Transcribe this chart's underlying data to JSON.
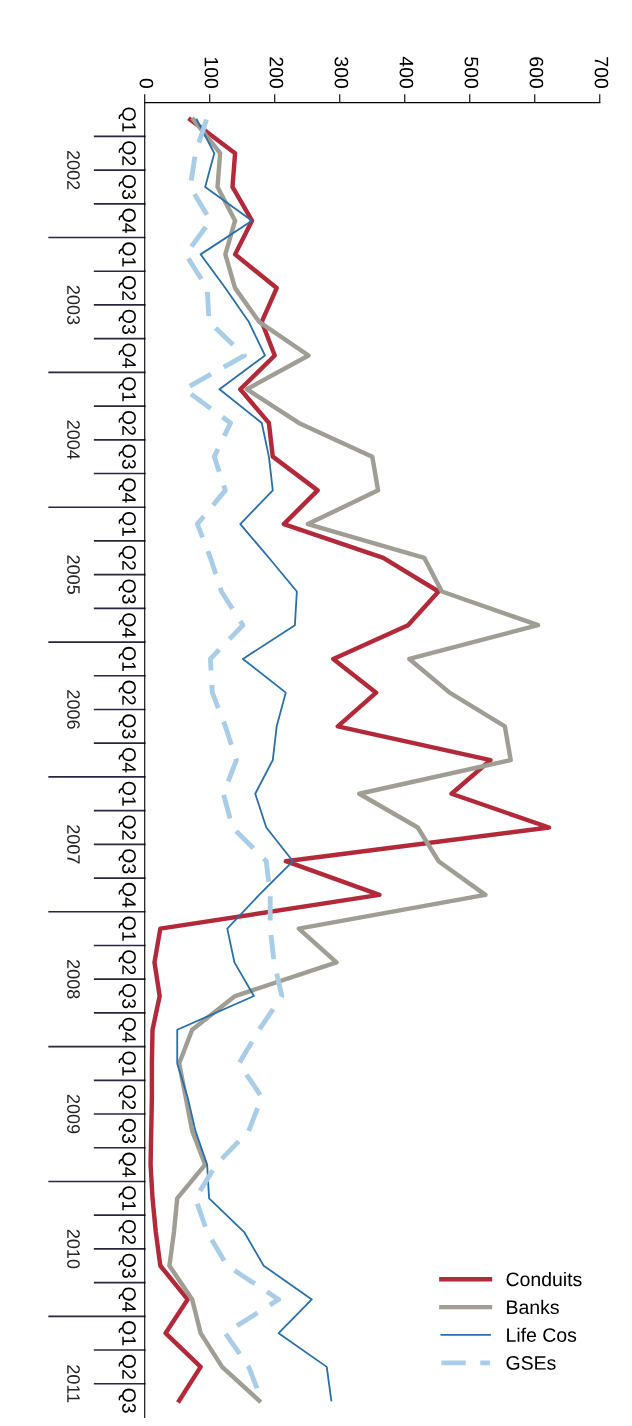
{
  "chart_data": {
    "type": "line",
    "orientation": "horizontal",
    "categories": [
      "Q1",
      "Q2",
      "Q3",
      "Q4",
      "Q1",
      "Q2",
      "Q3",
      "Q4",
      "Q1",
      "Q2",
      "Q3",
      "Q4",
      "Q1",
      "Q2",
      "Q3",
      "Q4",
      "Q1",
      "Q2",
      "Q3",
      "Q4",
      "Q1",
      "Q2",
      "Q3",
      "Q4",
      "Q1",
      "Q2",
      "Q3",
      "Q4",
      "Q1",
      "Q2",
      "Q3",
      "Q4",
      "Q1",
      "Q2",
      "Q3",
      "Q4",
      "Q1",
      "Q2",
      "Q3"
    ],
    "annotations": [
      "2002",
      "2003",
      "2004",
      "2005",
      "2006",
      "2007",
      "2008",
      "2009",
      "2010",
      "2011"
    ],
    "xlim": [
      0,
      700
    ],
    "xticks": [
      0,
      100,
      200,
      300,
      400,
      500,
      600,
      700
    ],
    "legend": "bottom right",
    "series": [
      {
        "name": "Conduits",
        "color": "#b22a3a",
        "values": [
          70,
          139,
          135,
          165,
          139,
          203,
          180,
          200,
          147,
          191,
          197,
          266,
          214,
          367,
          452,
          405,
          290,
          356,
          297,
          532,
          472,
          622,
          217,
          361,
          24,
          15,
          23,
          12,
          11,
          11,
          10,
          9,
          12,
          17,
          24,
          66,
          32,
          86,
          53
        ]
      },
      {
        "name": "Banks",
        "color": "#a09d95",
        "values": [
          75,
          116,
          112,
          139,
          124,
          139,
          176,
          252,
          157,
          237,
          350,
          359,
          251,
          430,
          457,
          605,
          407,
          469,
          554,
          563,
          330,
          420,
          452,
          524,
          237,
          295,
          139,
          73,
          53,
          63,
          73,
          93,
          50,
          45,
          38,
          73,
          86,
          119,
          176
        ]
      },
      {
        "name": "Life Cos",
        "color": "#2a6fa8",
        "values": [
          80,
          107,
          93,
          165,
          86,
          124,
          160,
          185,
          115,
          180,
          191,
          197,
          147,
          191,
          234,
          231,
          151,
          217,
          203,
          197,
          170,
          187,
          228,
          176,
          127,
          138,
          168,
          50,
          50,
          66,
          78,
          96,
          99,
          153,
          183,
          257,
          206,
          280,
          287
        ]
      },
      {
        "name": "GSEs",
        "color": "#a9cde6",
        "line_style": "dashed",
        "values": [
          95,
          78,
          70,
          101,
          63,
          96,
          99,
          153,
          61,
          132,
          107,
          124,
          81,
          101,
          118,
          151,
          101,
          104,
          124,
          141,
          121,
          135,
          187,
          193,
          193,
          199,
          211,
          176,
          145,
          180,
          160,
          110,
          78,
          96,
          127,
          206,
          124,
          160,
          180
        ]
      }
    ]
  }
}
